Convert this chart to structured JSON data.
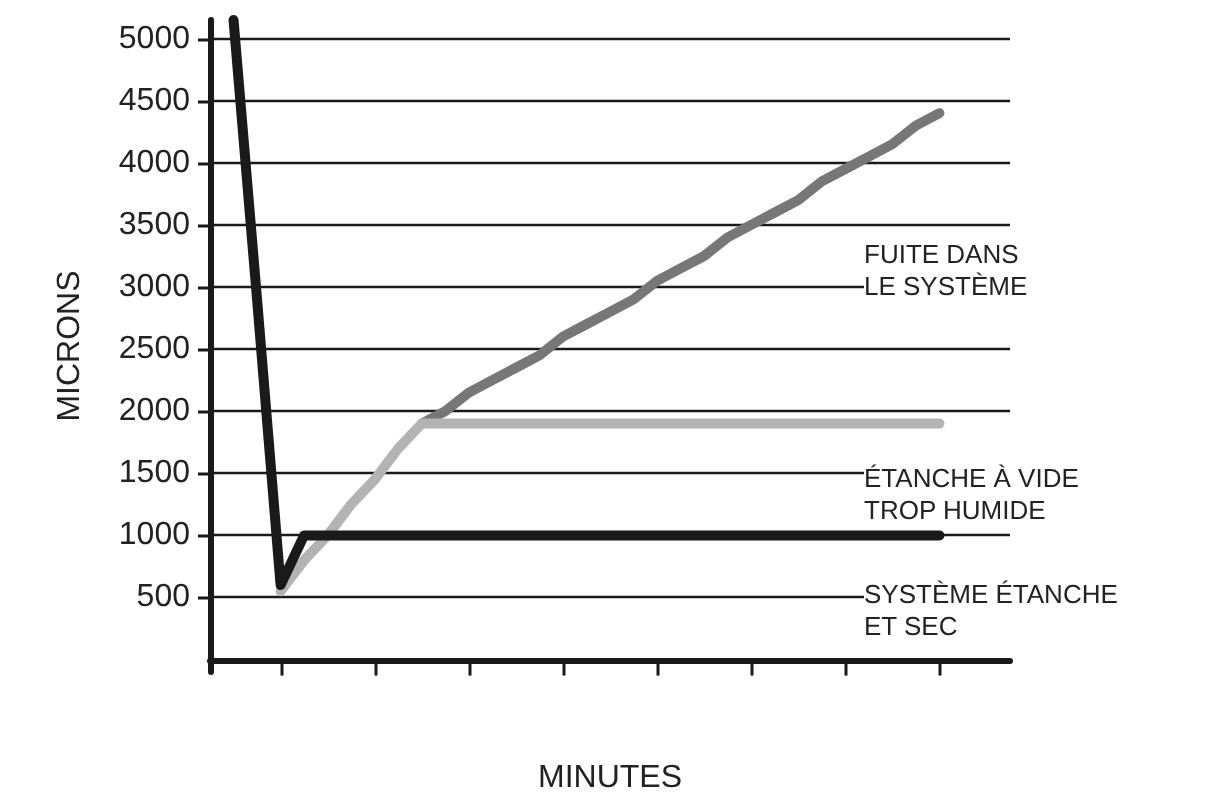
{
  "chart_data": {
    "type": "line",
    "xlabel": "MINUTES",
    "ylabel": "MICRONS",
    "categories": [
      null,
      null,
      null,
      null,
      null,
      null,
      null,
      null,
      null,
      null,
      null,
      null,
      null,
      null,
      null,
      null,
      null,
      null,
      null,
      null,
      null,
      null,
      null,
      null,
      null,
      null,
      null,
      null,
      null,
      null,
      null,
      null,
      null,
      null,
      null
    ],
    "ylim": [
      -100,
      5150
    ],
    "yticks": [
      500,
      1000,
      1500,
      2000,
      2500,
      3000,
      3500,
      4000,
      4500,
      5000
    ],
    "tick_labels": "y",
    "grid": "y",
    "marker": "none",
    "line_style": "solid",
    "series": [
      {
        "color": "#777777",
        "values": [
          null,
          null,
          null,
          null,
          null,
          null,
          null,
          null,
          null,
          1900,
          2000,
          2150,
          2250,
          2350,
          2450,
          2600,
          2700,
          2800,
          2900,
          3050,
          3150,
          3250,
          3400,
          3500,
          3600,
          3700,
          3850,
          3950,
          4050,
          4150,
          4300,
          4400,
          null,
          null,
          null
        ]
      },
      {
        "color": "#b3b3b3",
        "values": [
          null,
          null,
          null,
          550,
          800,
          1000,
          1250,
          1450,
          1700,
          1900,
          1900,
          1900,
          1900,
          1900,
          1900,
          1900,
          1900,
          1900,
          1900,
          1900,
          1900,
          1900,
          1900,
          1900,
          1900,
          1900,
          1900,
          1900,
          1900,
          1900,
          1900,
          1900,
          null,
          null,
          null
        ]
      },
      {
        "color": "#1a1a1a",
        "values": [
          null,
          5150,
          2900,
          600,
          1000,
          1000,
          1000,
          1000,
          1000,
          1000,
          1000,
          1000,
          1000,
          1000,
          1000,
          1000,
          1000,
          1000,
          1000,
          1000,
          1000,
          1000,
          1000,
          1000,
          1000,
          1000,
          1000,
          1000,
          1000,
          1000,
          1000,
          1000,
          null,
          null,
          null
        ]
      }
    ],
    "annotations": [
      "FUITE DANS\nLE SYSTÈME",
      "ÉTANCHE À VIDE\nTROP HUMIDE",
      "SYSTÈME ÉTANCHE\nET SEC"
    ]
  }
}
